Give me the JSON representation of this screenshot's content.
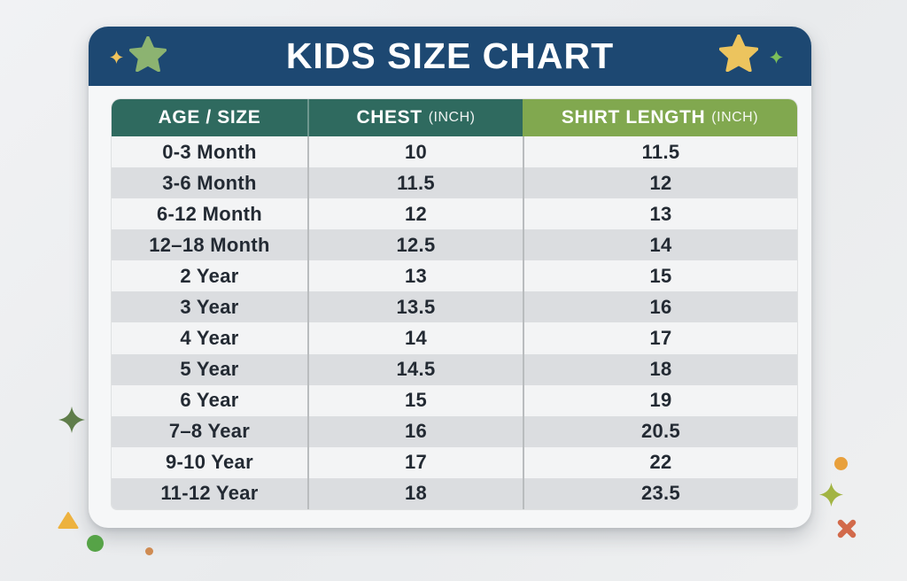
{
  "title": "KIDS SIZE CHART",
  "table": {
    "columns": [
      {
        "label": "AGE / SIZE",
        "unit": ""
      },
      {
        "label": "CHEST",
        "unit": "(INCH)"
      },
      {
        "label": "SHIRT LENGTH",
        "unit": "(INCH)"
      }
    ],
    "rows": [
      [
        "0-3 Month",
        "10",
        "11.5"
      ],
      [
        "3-6 Month",
        "11.5",
        "12"
      ],
      [
        "6-12 Month",
        "12",
        "13"
      ],
      [
        "12–18 Month",
        "12.5",
        "14"
      ],
      [
        "2 Year",
        "13",
        "15"
      ],
      [
        "3 Year",
        "13.5",
        "16"
      ],
      [
        "4 Year",
        "14",
        "17"
      ],
      [
        "5 Year",
        "14.5",
        "18"
      ],
      [
        "6 Year",
        "15",
        "19"
      ],
      [
        "7–8 Year",
        "16",
        "20.5"
      ],
      [
        "9-10 Year",
        "17",
        "22"
      ],
      [
        "11-12 Year",
        "18",
        "23.5"
      ]
    ]
  },
  "chart_data": {
    "type": "table",
    "title": "KIDS SIZE CHART",
    "columns": [
      "AGE / SIZE",
      "CHEST (INCH)",
      "SHIRT LENGTH (INCH)"
    ],
    "rows": [
      [
        "0-3 Month",
        10,
        11.5
      ],
      [
        "3-6 Month",
        11.5,
        12
      ],
      [
        "6-12 Month",
        12,
        13
      ],
      [
        "12–18 Month",
        12.5,
        14
      ],
      [
        "2 Year",
        13,
        15
      ],
      [
        "3 Year",
        13.5,
        16
      ],
      [
        "4 Year",
        14,
        17
      ],
      [
        "5 Year",
        14.5,
        18
      ],
      [
        "6 Year",
        15,
        19
      ],
      [
        "7–8 Year",
        16,
        20.5
      ],
      [
        "9-10 Year",
        17,
        22
      ],
      [
        "11-12 Year",
        18,
        23.5
      ]
    ]
  },
  "colors": {
    "banner_navy": "#1d4872",
    "header_teal": "#2f6a5f",
    "header_green": "#81a84f",
    "row_light": "#f3f4f5",
    "row_gray": "#dbdde0",
    "text_dark": "#232a33",
    "star_green": "#8cb371",
    "sparkle_yellow": "#f0c35c",
    "star_yellow": "#ecc45e",
    "sparkle_green": "#7cbf5a",
    "sparkle_olive": "#5f7d4a",
    "triangle_yellow": "#edb23f",
    "dot_green": "#56a347",
    "dot_tan": "#cf8b52",
    "dot_orange": "#e8a03c",
    "sparkle_lime": "#a2b443",
    "x_mark": "#d26a4b"
  }
}
